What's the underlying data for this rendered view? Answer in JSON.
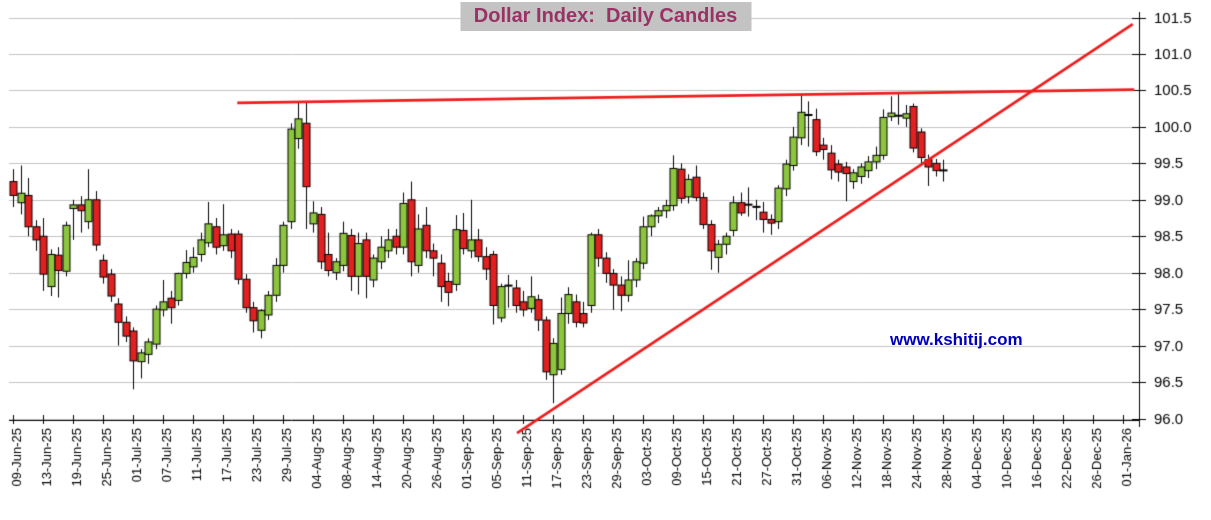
{
  "title": {
    "text": "Dollar Index:  Daily Candles",
    "color": "#993366",
    "bg": "#c3c3c3"
  },
  "watermark": {
    "text": "www.kshitij.com",
    "color": "#0000bb"
  },
  "chart_data": {
    "type": "candlestick",
    "title": "Dollar Index: Daily Candles",
    "ylim": [
      96.0,
      101.5
    ],
    "y_tick_step": 0.5,
    "grid": "horizontal-only",
    "legend": "none",
    "x_labels": [
      "09-Jun-25",
      "13-Jun-25",
      "19-Jun-25",
      "25-Jun-25",
      "01-Jul-25",
      "07-Jul-25",
      "11-Jul-25",
      "17-Jul-25",
      "23-Jul-25",
      "29-Jul-25",
      "04-Aug-25",
      "08-Aug-25",
      "14-Aug-25",
      "20-Aug-25",
      "26-Aug-25",
      "01-Sep-25",
      "05-Sep-25",
      "11-Sep-25",
      "17-Sep-25",
      "23-Sep-25",
      "29-Sep-25",
      "03-Oct-25",
      "09-Oct-25",
      "15-Oct-25",
      "21-Oct-25",
      "27-Oct-25",
      "31-Oct-25",
      "06-Nov-25",
      "12-Nov-25",
      "18-Nov-25",
      "24-Nov-25",
      "28-Nov-25",
      "04-Dec-25",
      "10-Dec-25",
      "16-Dec-25",
      "22-Dec-25",
      "26-Dec-25",
      "01-Jan-26"
    ],
    "candles_per_label_interval": 4,
    "colors": {
      "up": "#8cc63c",
      "down": "#e32020",
      "wick": "#000000",
      "grid": "#c2c2c2",
      "axis": "#000000",
      "trendline": "#ee1c1c"
    },
    "candles_ohlc": [
      [
        99.25,
        99.42,
        98.9,
        99.06
      ],
      [
        98.96,
        99.47,
        98.8,
        99.09
      ],
      [
        99.06,
        99.3,
        98.5,
        98.63
      ],
      [
        98.63,
        98.72,
        98.3,
        98.45
      ],
      [
        98.5,
        98.75,
        97.75,
        97.98
      ],
      [
        97.81,
        98.32,
        97.68,
        98.25
      ],
      [
        98.24,
        98.35,
        97.66,
        98.03
      ],
      [
        98.02,
        98.7,
        97.95,
        98.65
      ],
      [
        98.88,
        99.0,
        98.45,
        98.93
      ],
      [
        98.93,
        99.05,
        98.55,
        98.85
      ],
      [
        98.7,
        99.42,
        98.6,
        99.0
      ],
      [
        99.0,
        99.12,
        98.3,
        98.38
      ],
      [
        98.17,
        98.25,
        97.85,
        97.94
      ],
      [
        97.98,
        98.05,
        97.6,
        97.68
      ],
      [
        97.57,
        97.65,
        97.0,
        97.32
      ],
      [
        97.32,
        97.4,
        97.05,
        97.13
      ],
      [
        97.2,
        97.25,
        96.4,
        96.79
      ],
      [
        96.78,
        96.95,
        96.55,
        96.9
      ],
      [
        96.88,
        97.1,
        96.75,
        97.05
      ],
      [
        97.02,
        97.55,
        96.95,
        97.5
      ],
      [
        97.49,
        97.9,
        97.4,
        97.6
      ],
      [
        97.65,
        97.75,
        97.3,
        97.52
      ],
      [
        97.62,
        98.0,
        97.55,
        97.99
      ],
      [
        97.99,
        98.31,
        97.92,
        98.14
      ],
      [
        98.08,
        98.35,
        98.0,
        98.21
      ],
      [
        98.25,
        98.55,
        98.15,
        98.45
      ],
      [
        98.41,
        98.97,
        98.35,
        98.67
      ],
      [
        98.63,
        98.75,
        98.25,
        98.35
      ],
      [
        98.37,
        98.94,
        98.3,
        98.52
      ],
      [
        98.53,
        98.6,
        98.2,
        98.3
      ],
      [
        98.53,
        98.58,
        97.84,
        97.91
      ],
      [
        97.91,
        97.98,
        97.45,
        97.52
      ],
      [
        97.52,
        97.6,
        97.18,
        97.34
      ],
      [
        97.21,
        97.5,
        97.1,
        97.48
      ],
      [
        97.42,
        97.75,
        97.35,
        97.69
      ],
      [
        97.69,
        98.2,
        97.6,
        98.1
      ],
      [
        98.1,
        98.7,
        98.0,
        98.65
      ],
      [
        98.7,
        100.05,
        98.6,
        99.97
      ],
      [
        99.84,
        100.34,
        99.7,
        100.11
      ],
      [
        100.05,
        100.33,
        98.6,
        99.18
      ],
      [
        98.67,
        98.98,
        98.55,
        98.82
      ],
      [
        98.8,
        98.9,
        98.05,
        98.15
      ],
      [
        98.25,
        98.55,
        97.95,
        98.03
      ],
      [
        98.0,
        98.2,
        97.9,
        98.15
      ],
      [
        98.1,
        98.7,
        98.02,
        98.54
      ],
      [
        98.51,
        98.6,
        97.75,
        97.95
      ],
      [
        97.95,
        98.55,
        97.7,
        98.4
      ],
      [
        98.45,
        98.55,
        97.65,
        97.95
      ],
      [
        97.9,
        98.25,
        97.8,
        98.2
      ],
      [
        98.15,
        98.5,
        98.05,
        98.35
      ],
      [
        98.3,
        98.6,
        98.2,
        98.45
      ],
      [
        98.5,
        98.6,
        98.25,
        98.35
      ],
      [
        98.35,
        99.1,
        98.25,
        98.95
      ],
      [
        99.0,
        99.25,
        97.95,
        98.15
      ],
      [
        98.1,
        98.8,
        98.0,
        98.6
      ],
      [
        98.65,
        98.9,
        98.2,
        98.3
      ],
      [
        98.3,
        98.4,
        97.95,
        98.2
      ],
      [
        98.13,
        98.25,
        97.6,
        97.81
      ],
      [
        97.88,
        98.0,
        97.54,
        97.73
      ],
      [
        97.84,
        98.79,
        97.75,
        98.59
      ],
      [
        98.58,
        98.82,
        98.25,
        98.33
      ],
      [
        98.3,
        99.0,
        98.2,
        98.45
      ],
      [
        98.45,
        98.6,
        98.15,
        98.22
      ],
      [
        98.22,
        98.35,
        97.9,
        98.05
      ],
      [
        98.25,
        98.3,
        97.29,
        97.55
      ],
      [
        97.38,
        97.85,
        97.32,
        97.81
      ],
      [
        97.83,
        97.97,
        97.52,
        97.83
      ],
      [
        97.79,
        97.9,
        97.45,
        97.55
      ],
      [
        97.6,
        97.75,
        97.4,
        97.49
      ],
      [
        97.51,
        97.95,
        97.45,
        97.67
      ],
      [
        97.63,
        97.7,
        97.2,
        97.35
      ],
      [
        97.35,
        97.4,
        96.53,
        96.64
      ],
      [
        96.6,
        97.1,
        96.21,
        97.03
      ],
      [
        96.67,
        97.66,
        96.6,
        97.44
      ],
      [
        97.44,
        97.8,
        97.3,
        97.7
      ],
      [
        97.6,
        97.7,
        97.25,
        97.32
      ],
      [
        97.44,
        97.6,
        97.25,
        97.31
      ],
      [
        97.55,
        98.55,
        97.45,
        98.52
      ],
      [
        98.52,
        98.6,
        98.08,
        98.2
      ],
      [
        98.2,
        98.28,
        97.86,
        97.99
      ],
      [
        97.99,
        98.05,
        97.49,
        97.83
      ],
      [
        97.83,
        97.95,
        97.47,
        97.69
      ],
      [
        97.69,
        98.17,
        97.6,
        97.9
      ],
      [
        97.9,
        98.2,
        97.8,
        98.15
      ],
      [
        98.13,
        98.77,
        98.05,
        98.63
      ],
      [
        98.63,
        98.8,
        98.5,
        98.78
      ],
      [
        98.78,
        98.9,
        98.68,
        98.85
      ],
      [
        98.85,
        99.0,
        98.75,
        98.92
      ],
      [
        98.92,
        99.61,
        98.85,
        99.43
      ],
      [
        99.42,
        99.5,
        98.95,
        99.02
      ],
      [
        99.04,
        99.35,
        98.95,
        99.28
      ],
      [
        99.31,
        99.47,
        98.98,
        99.03
      ],
      [
        99.03,
        99.1,
        98.6,
        98.66
      ],
      [
        98.66,
        98.72,
        98.04,
        98.3
      ],
      [
        98.21,
        98.45,
        98.0,
        98.39
      ],
      [
        98.39,
        98.55,
        98.25,
        98.5
      ],
      [
        98.58,
        99.05,
        98.5,
        98.96
      ],
      [
        98.96,
        99.1,
        98.78,
        98.82
      ],
      [
        98.94,
        99.17,
        98.77,
        98.94
      ],
      [
        98.91,
        99.0,
        98.72,
        98.91
      ],
      [
        98.83,
        98.97,
        98.55,
        98.73
      ],
      [
        98.73,
        98.8,
        98.52,
        98.68
      ],
      [
        98.7,
        99.2,
        98.6,
        99.16
      ],
      [
        99.15,
        99.55,
        99.05,
        99.49
      ],
      [
        99.47,
        100.0,
        99.4,
        99.86
      ],
      [
        99.85,
        100.44,
        99.75,
        100.2
      ],
      [
        100.17,
        100.35,
        99.73,
        100.17
      ],
      [
        100.1,
        100.25,
        99.6,
        99.66
      ],
      [
        99.75,
        99.85,
        99.55,
        99.69
      ],
      [
        99.64,
        99.75,
        99.28,
        99.41
      ],
      [
        99.49,
        99.55,
        99.25,
        99.38
      ],
      [
        99.45,
        99.52,
        98.98,
        99.36
      ],
      [
        99.25,
        99.42,
        99.15,
        99.37
      ],
      [
        99.32,
        99.5,
        99.22,
        99.45
      ],
      [
        99.4,
        99.6,
        99.3,
        99.52
      ],
      [
        99.52,
        99.73,
        99.42,
        99.61
      ],
      [
        99.61,
        100.24,
        99.55,
        100.13
      ],
      [
        100.14,
        100.42,
        100.08,
        100.19
      ],
      [
        100.16,
        100.45,
        100.03,
        100.16
      ],
      [
        100.12,
        100.3,
        100.0,
        100.18
      ],
      [
        100.28,
        100.32,
        99.65,
        99.71
      ],
      [
        99.93,
        99.98,
        99.48,
        99.58
      ],
      [
        99.55,
        99.62,
        99.19,
        99.45
      ],
      [
        99.5,
        99.56,
        99.32,
        99.4
      ],
      [
        99.41,
        99.55,
        99.25,
        99.41
      ]
    ],
    "trendlines": [
      {
        "name": "resistance",
        "x1_candle": 29.9,
        "v1": 100.33,
        "x2_candle": 149.5,
        "v2": 100.51
      },
      {
        "name": "rising-support",
        "x1_candle": 67.2,
        "v1": 95.8,
        "x2_candle": 149.3,
        "v2": 101.41
      }
    ]
  }
}
